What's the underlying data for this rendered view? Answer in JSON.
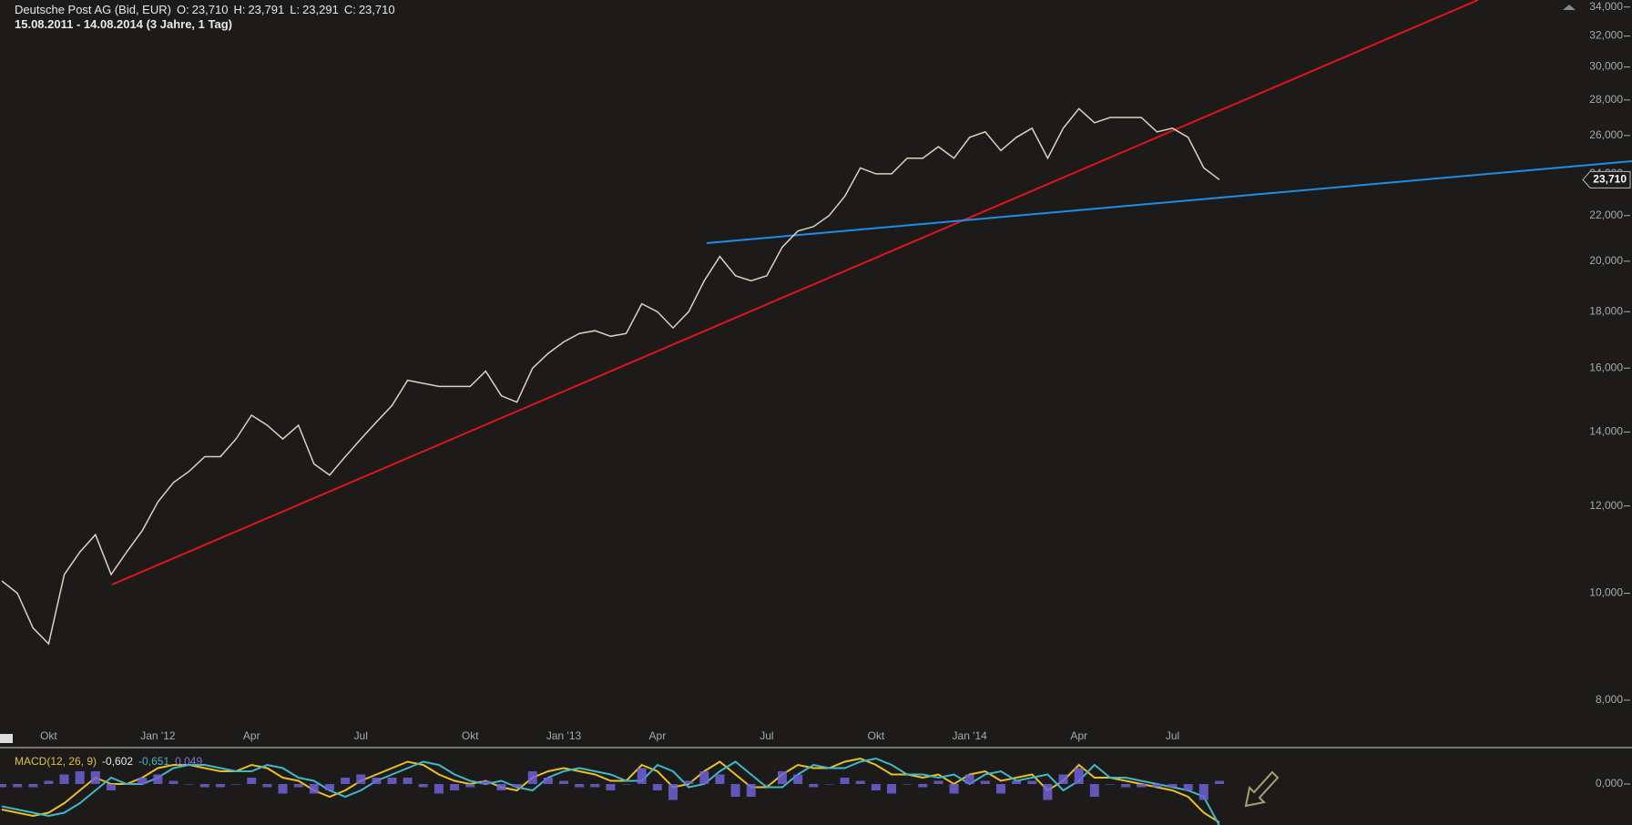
{
  "chart_data": [
    {
      "type": "line",
      "title": "Deutsche Post AG (Bid, EUR)",
      "subtitle": "15.08.2011 - 14.08.2014 (3 Jahre, 1 Tag)",
      "ohlc": [
        {
          "label": "O:",
          "value": "23,710"
        },
        {
          "label": "H:",
          "value": "23,791"
        },
        {
          "label": "L:",
          "value": "23,291"
        },
        {
          "label": "C:",
          "value": "23,710"
        }
      ],
      "log_scale": true,
      "color": "#d8d4c0",
      "categories": [
        null,
        null,
        null,
        "Okt",
        null,
        null,
        null,
        null,
        null,
        null,
        "Jan '12",
        null,
        null,
        null,
        null,
        null,
        "Apr",
        null,
        null,
        null,
        null,
        null,
        null,
        "Jul",
        null,
        null,
        null,
        null,
        null,
        null,
        "Okt",
        null,
        null,
        null,
        null,
        null,
        "Jan '13",
        null,
        null,
        null,
        null,
        null,
        "Apr",
        null,
        null,
        null,
        null,
        null,
        null,
        "Jul",
        null,
        null,
        null,
        null,
        null,
        null,
        "Okt",
        null,
        null,
        null,
        null,
        null,
        "Jan '14",
        null,
        null,
        null,
        null,
        null,
        null,
        "Apr",
        null,
        null,
        null,
        null,
        null,
        "Jul",
        null,
        null,
        null
      ],
      "values": [
        10.26,
        10.0,
        9.3,
        9.0,
        10.4,
        10.9,
        11.3,
        10.4,
        10.9,
        11.4,
        12.1,
        12.6,
        12.9,
        13.3,
        13.3,
        13.8,
        14.5,
        14.2,
        13.8,
        14.2,
        13.1,
        12.8,
        13.3,
        13.8,
        14.3,
        14.8,
        15.6,
        15.5,
        15.4,
        15.4,
        15.4,
        15.9,
        15.1,
        14.9,
        16.0,
        16.5,
        16.9,
        17.2,
        17.3,
        17.1,
        17.2,
        18.3,
        18.0,
        17.4,
        18.0,
        19.2,
        20.2,
        19.4,
        19.2,
        19.4,
        20.6,
        21.3,
        21.5,
        22.0,
        22.9,
        24.3,
        24.0,
        24.0,
        24.8,
        24.8,
        25.4,
        24.8,
        25.9,
        26.2,
        25.2,
        25.9,
        26.4,
        24.8,
        26.4,
        27.5,
        26.7,
        27.0,
        27.0,
        27.0,
        26.2,
        26.4,
        25.9,
        24.3,
        23.71
      ],
      "last_value": {
        "value": 23.71,
        "label": "23,710"
      },
      "ylim": [
        7.26,
        34.5
      ],
      "yticks": [
        {
          "value": 8,
          "label": "8,000"
        },
        {
          "value": 10,
          "label": "10,000"
        },
        {
          "value": 12,
          "label": "12,000"
        },
        {
          "value": 14,
          "label": "14,000"
        },
        {
          "value": 16,
          "label": "16,000"
        },
        {
          "value": 18,
          "label": "18,000"
        },
        {
          "value": 20,
          "label": "20,000"
        },
        {
          "value": 22,
          "label": "22,000"
        },
        {
          "value": 24,
          "label": "24,000"
        },
        {
          "value": 26,
          "label": "26,000"
        },
        {
          "value": 28,
          "label": "28,000"
        },
        {
          "value": 30,
          "label": "30,000"
        },
        {
          "value": 32,
          "label": "32,000"
        },
        {
          "value": 34,
          "label": "34,000"
        }
      ]
    },
    {
      "type": "line",
      "title": "MACD(12, 26, 9)",
      "legend_values": [
        "-0,602",
        "-0,651",
        "0,049"
      ],
      "series": [
        {
          "color": "#e8c020",
          "values": [
            -0.4,
            -0.45,
            -0.5,
            -0.45,
            -0.3,
            -0.1,
            0.1,
            0.0,
            0.0,
            0.1,
            0.25,
            0.3,
            0.3,
            0.25,
            0.2,
            0.2,
            0.3,
            0.25,
            0.1,
            0.05,
            -0.1,
            -0.2,
            -0.1,
            0.05,
            0.15,
            0.25,
            0.35,
            0.3,
            0.15,
            0.05,
            0.0,
            0.05,
            -0.05,
            -0.1,
            0.1,
            0.2,
            0.25,
            0.2,
            0.15,
            0.05,
            0.05,
            0.3,
            0.2,
            -0.05,
            0.0,
            0.2,
            0.35,
            0.15,
            -0.05,
            -0.05,
            0.15,
            0.3,
            0.25,
            0.25,
            0.35,
            0.4,
            0.3,
            0.15,
            0.15,
            0.1,
            0.15,
            0.0,
            0.15,
            0.2,
            0.05,
            0.1,
            0.15,
            -0.1,
            0.05,
            0.3,
            0.1,
            0.1,
            0.05,
            0.0,
            -0.05,
            -0.1,
            -0.2,
            -0.45,
            -0.602
          ]
        },
        {
          "color": "#3fb8c8",
          "values": [
            -0.35,
            -0.4,
            -0.45,
            -0.5,
            -0.45,
            -0.3,
            -0.1,
            0.1,
            0.0,
            0.0,
            0.1,
            0.25,
            0.3,
            0.3,
            0.25,
            0.2,
            0.2,
            0.3,
            0.25,
            0.1,
            0.05,
            -0.1,
            -0.2,
            -0.1,
            0.05,
            0.15,
            0.25,
            0.35,
            0.3,
            0.15,
            0.05,
            0.0,
            0.05,
            -0.05,
            -0.1,
            0.1,
            0.2,
            0.25,
            0.2,
            0.15,
            0.05,
            0.05,
            0.3,
            0.2,
            -0.05,
            0.0,
            0.2,
            0.35,
            0.15,
            -0.05,
            -0.05,
            0.15,
            0.3,
            0.25,
            0.25,
            0.35,
            0.4,
            0.3,
            0.15,
            0.15,
            0.1,
            0.15,
            0.0,
            0.15,
            0.2,
            0.05,
            0.1,
            0.15,
            -0.1,
            0.05,
            0.3,
            0.1,
            0.1,
            0.05,
            0.0,
            -0.05,
            -0.1,
            -0.2,
            -0.651
          ]
        },
        {
          "type": "bar",
          "color": "#7060d8",
          "values": [
            -0.05,
            -0.05,
            -0.05,
            0.05,
            0.15,
            0.2,
            0.2,
            -0.1,
            0.0,
            0.1,
            0.15,
            0.05,
            0.0,
            -0.05,
            -0.05,
            0.0,
            0.1,
            -0.05,
            -0.15,
            -0.05,
            -0.15,
            -0.1,
            0.1,
            0.15,
            0.1,
            0.1,
            0.1,
            -0.05,
            -0.15,
            -0.1,
            -0.05,
            0.05,
            -0.1,
            -0.05,
            0.2,
            0.1,
            0.05,
            -0.05,
            -0.05,
            -0.1,
            0.0,
            0.25,
            -0.1,
            -0.25,
            0.05,
            0.2,
            0.15,
            -0.2,
            -0.2,
            0.0,
            0.2,
            0.15,
            -0.05,
            0.0,
            0.1,
            0.05,
            -0.1,
            -0.15,
            0.0,
            -0.05,
            0.05,
            -0.15,
            0.15,
            0.05,
            -0.15,
            0.05,
            0.05,
            -0.25,
            0.15,
            0.25,
            -0.2,
            0.0,
            -0.05,
            -0.05,
            -0.05,
            -0.05,
            -0.1,
            -0.25,
            0.049
          ]
        }
      ],
      "ylim": [
        -0.643,
        0.557
      ],
      "yticks": [
        {
          "value": 0,
          "label": "0,000"
        }
      ]
    }
  ]
}
